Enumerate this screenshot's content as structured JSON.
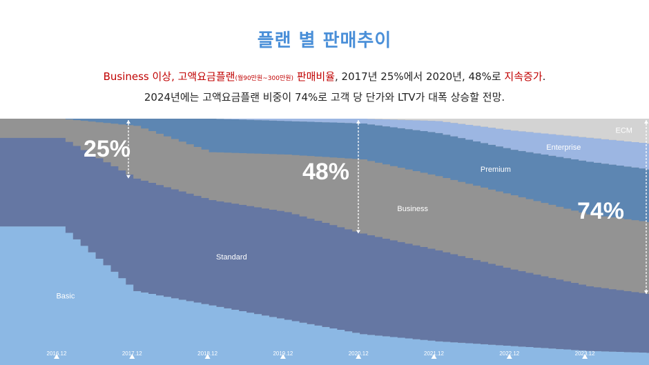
{
  "header": {
    "title": "플랜 별 판매추이",
    "line1": {
      "part1": "Business 이상, 고액요금플랜",
      "part1_small": "(월90만원~300만원)",
      "part2": " 판매비율",
      "part3": ", 2017년 25%에서 2020년, 48%로 ",
      "part4": "지속증가",
      "part5": "."
    },
    "line2": "2024년에는 고액요금플랜 비중이 74%로  고객 당 단가와 LTV가 대폭 상승할 전망."
  },
  "chart_data": {
    "type": "area",
    "stacked": true,
    "normalized_percent": true,
    "x": [
      "2016.12",
      "2017.12",
      "2018.12",
      "2019.12",
      "2020.12",
      "2021.12",
      "2022.12",
      "2023.12",
      "2024.12"
    ],
    "x_ticks": [
      "2016.12",
      "2017.12",
      "2018.12",
      "2019.12",
      "2020.12",
      "2021.12",
      "2022.12",
      "2023.12"
    ],
    "ylim": [
      0,
      100
    ],
    "series": [
      {
        "name": "Basic",
        "color": "#8cb8e4",
        "values": [
          55,
          28,
          22,
          16,
          10,
          7,
          5,
          3,
          2
        ]
      },
      {
        "name": "Standard",
        "color": "#6577a3",
        "values": [
          37,
          47,
          44,
          45,
          42,
          38,
          32,
          27,
          24
        ]
      },
      {
        "name": "Business",
        "color": "#939393",
        "values": [
          8,
          22,
          20,
          24,
          31,
          31,
          31,
          30,
          30
        ]
      },
      {
        "name": "Premium",
        "color": "#5d86b2",
        "values": [
          0,
          3,
          14,
          14,
          15,
          18,
          19,
          22,
          22
        ]
      },
      {
        "name": "Enterprise",
        "color": "#9cb6e2",
        "values": [
          0,
          0,
          0,
          1,
          2,
          5,
          8,
          10,
          11
        ]
      },
      {
        "name": "ECM",
        "color": "#d3d3d3",
        "values": [
          0,
          0,
          0,
          0,
          0,
          1,
          5,
          8,
          11
        ]
      }
    ],
    "annotations": [
      {
        "text": "25%",
        "x": "2017.12",
        "value": 25
      },
      {
        "text": "48%",
        "x": "2020.12",
        "value": 48
      },
      {
        "text": "74%",
        "x": "2024.12",
        "value": 74
      }
    ]
  },
  "colors": {
    "title": "#4a8fd8",
    "highlight": "#c00000",
    "text": "#222222"
  }
}
